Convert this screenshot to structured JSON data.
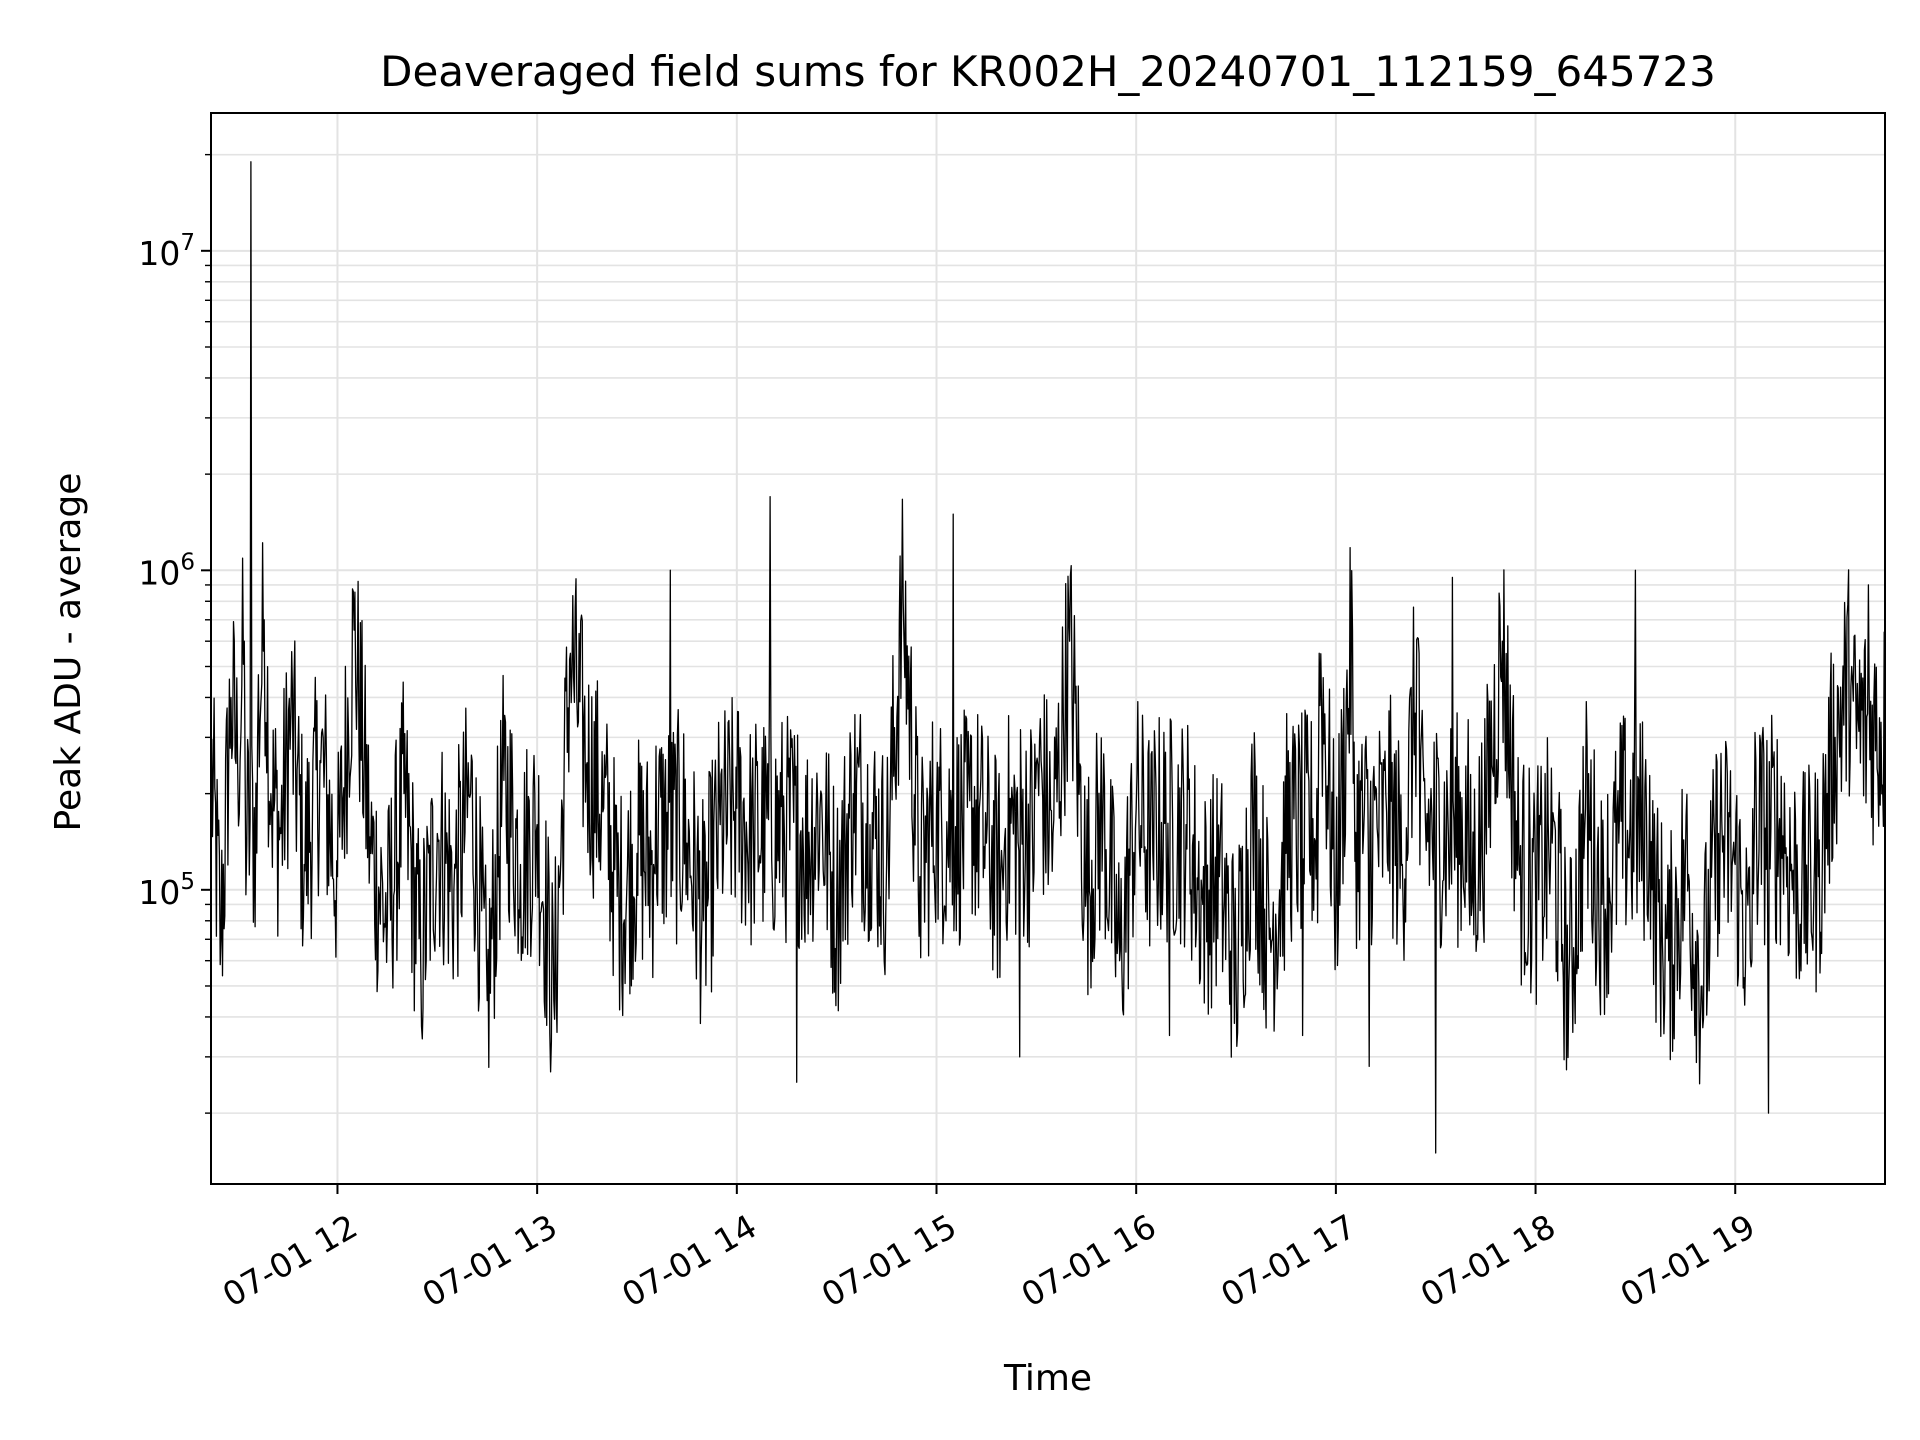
{
  "chart_data": {
    "type": "line",
    "title": "Deaveraged field sums for KR002H_20240701_112159_645723",
    "xlabel": "Time",
    "ylabel": "Peak ADU - average",
    "x_scale": "time",
    "y_scale": "log",
    "xlim": [
      "07-01 11:22",
      "07-01 19:45"
    ],
    "ylim": [
      12000,
      27000000
    ],
    "grid": true,
    "line_color": "#000000",
    "x_ticks": [
      {
        "label": "07-01 12",
        "value": "07-01 12:00"
      },
      {
        "label": "07-01 13",
        "value": "07-01 13:00"
      },
      {
        "label": "07-01 14",
        "value": "07-01 14:00"
      },
      {
        "label": "07-01 15",
        "value": "07-01 15:00"
      },
      {
        "label": "07-01 16",
        "value": "07-01 16:00"
      },
      {
        "label": "07-01 17",
        "value": "07-01 17:00"
      },
      {
        "label": "07-01 18",
        "value": "07-01 18:00"
      },
      {
        "label": "07-01 19",
        "value": "07-01 19:00"
      }
    ],
    "y_ticks": [
      {
        "base": "10",
        "exp": "5",
        "value": 100000
      },
      {
        "base": "10",
        "exp": "6",
        "value": 1000000
      },
      {
        "base": "10",
        "exp": "7",
        "value": 10000000
      }
    ],
    "series": [
      {
        "x": [
          "07-01 11:22",
          "07-01 11:25",
          "07-01 11:28",
          "07-01 11:30",
          "07-01 11:32",
          "07-01 11:34",
          "07-01 11:36",
          "07-01 11:38",
          "07-01 11:40",
          "07-01 11:43",
          "07-01 11:46",
          "07-01 11:50",
          "07-01 11:55",
          "07-01 12:00",
          "07-01 12:05",
          "07-01 12:10",
          "07-01 12:15",
          "07-01 12:20",
          "07-01 12:25",
          "07-01 12:30",
          "07-01 12:35",
          "07-01 12:40",
          "07-01 12:45",
          "07-01 12:50",
          "07-01 12:55",
          "07-01 13:00",
          "07-01 13:05",
          "07-01 13:10",
          "07-01 13:15",
          "07-01 13:20",
          "07-01 13:25",
          "07-01 13:30",
          "07-01 13:35",
          "07-01 13:40",
          "07-01 13:45",
          "07-01 13:50",
          "07-01 13:55",
          "07-01 14:00",
          "07-01 14:05",
          "07-01 14:10",
          "07-01 14:15",
          "07-01 14:18",
          "07-01 14:20",
          "07-01 14:25",
          "07-01 14:30",
          "07-01 14:35",
          "07-01 14:40",
          "07-01 14:45",
          "07-01 14:50",
          "07-01 14:55",
          "07-01 15:00",
          "07-01 15:05",
          "07-01 15:10",
          "07-01 15:15",
          "07-01 15:20",
          "07-01 15:25",
          "07-01 15:30",
          "07-01 15:35",
          "07-01 15:40",
          "07-01 15:45",
          "07-01 15:50",
          "07-01 15:55",
          "07-01 16:00",
          "07-01 16:05",
          "07-01 16:10",
          "07-01 16:15",
          "07-01 16:20",
          "07-01 16:25",
          "07-01 16:30",
          "07-01 16:35",
          "07-01 16:40",
          "07-01 16:45",
          "07-01 16:50",
          "07-01 16:55",
          "07-01 17:00",
          "07-01 17:05",
          "07-01 17:10",
          "07-01 17:15",
          "07-01 17:20",
          "07-01 17:25",
          "07-01 17:30",
          "07-01 17:35",
          "07-01 17:40",
          "07-01 17:45",
          "07-01 17:50",
          "07-01 17:55",
          "07-01 18:00",
          "07-01 18:05",
          "07-01 18:10",
          "07-01 18:15",
          "07-01 18:20",
          "07-01 18:25",
          "07-01 18:30",
          "07-01 18:35",
          "07-01 18:40",
          "07-01 18:45",
          "07-01 18:50",
          "07-01 18:55",
          "07-01 19:00",
          "07-01 19:05",
          "07-01 19:10",
          "07-01 19:15",
          "07-01 19:20",
          "07-01 19:25",
          "07-01 19:30",
          "07-01 19:35",
          "07-01 19:40",
          "07-01 19:45"
        ],
        "y": [
          250000,
          70000,
          400000,
          250000,
          600000,
          19000000,
          300000,
          700000,
          200000,
          150000,
          350000,
          120000,
          250000,
          110000,
          650000,
          130000,
          80000,
          200000,
          60000,
          150000,
          100000,
          200000,
          45000,
          220000,
          120000,
          160000,
          45000,
          550000,
          250000,
          180000,
          90000,
          130000,
          120000,
          1000000,
          140000,
          80000,
          160000,
          180000,
          140000,
          1700000,
          200000,
          25000,
          130000,
          180000,
          90000,
          200000,
          160000,
          120000,
          800000,
          110000,
          180000,
          1500000,
          190000,
          140000,
          100000,
          30000,
          250000,
          150000,
          600000,
          100000,
          170000,
          60000,
          180000,
          130000,
          35000,
          160000,
          90000,
          110000,
          55000,
          170000,
          70000,
          130000,
          35000,
          550000,
          100000,
          650000,
          28000,
          200000,
          120000,
          550000,
          15000,
          950000,
          100000,
          170000,
          600000,
          120000,
          100000,
          140000,
          50000,
          180000,
          90000,
          140000,
          1000000,
          100000,
          60000,
          120000,
          50000,
          150000,
          120000,
          60000,
          20000,
          130000,
          100000,
          110000,
          300000,
          500000,
          900000,
          350000
        ]
      }
    ]
  }
}
